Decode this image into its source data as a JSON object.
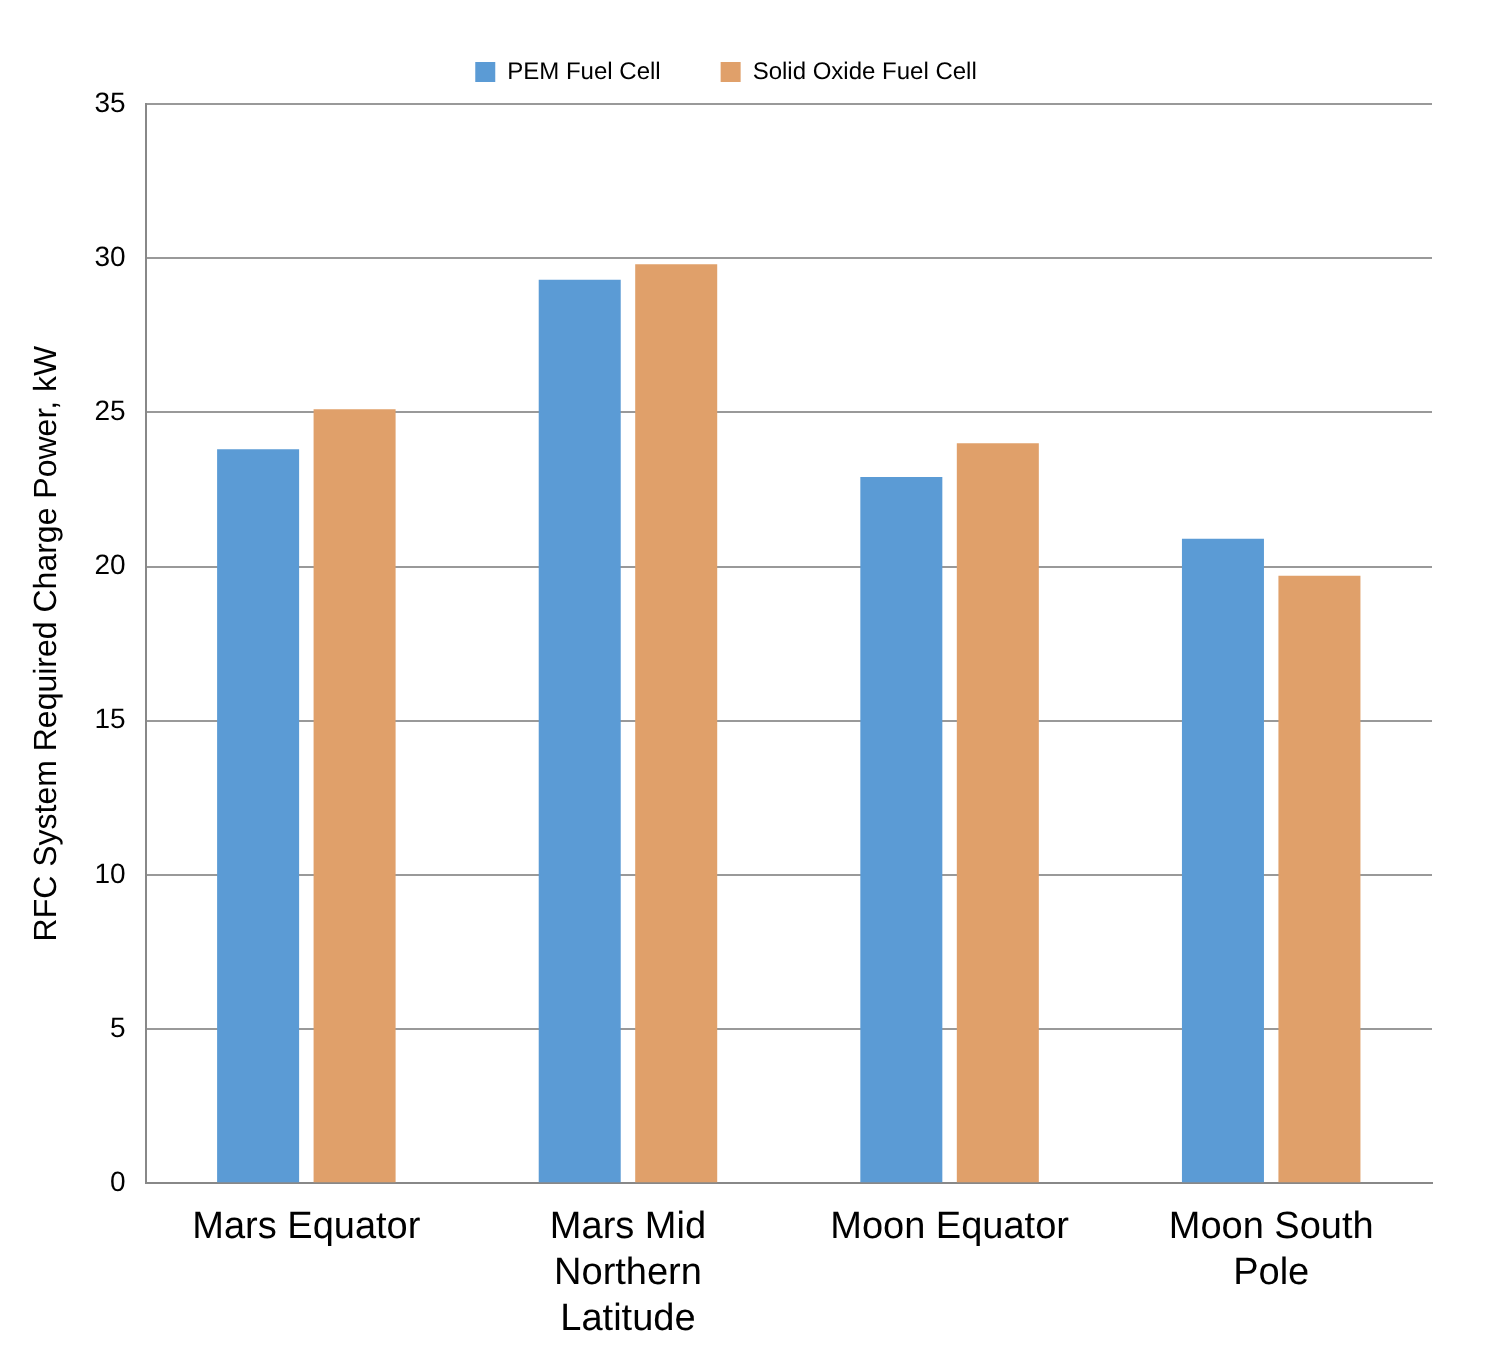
{
  "chart_data": {
    "type": "bar",
    "ylabel": "RFC System Required Charge Power, kW",
    "categories": [
      "Mars Equator",
      "Mars Mid Northern Latitude",
      "Moon Equator",
      "Moon South Pole"
    ],
    "series": [
      {
        "name": "PEM Fuel Cell",
        "color": "#5b9bd5",
        "values": [
          23.8,
          29.3,
          22.9,
          20.9
        ]
      },
      {
        "name": "Solid Oxide Fuel Cell",
        "color": "#e0a06a",
        "values": [
          25.1,
          29.8,
          24.0,
          19.7
        ]
      }
    ],
    "ylim": [
      0,
      35
    ],
    "yticks": [
      0,
      5,
      10,
      15,
      20,
      25,
      30,
      35
    ],
    "grid": "y",
    "legend": "top"
  }
}
